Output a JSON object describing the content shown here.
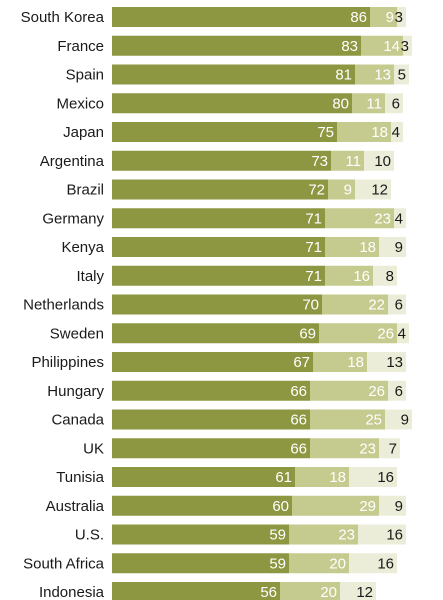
{
  "chart_data": {
    "type": "bar",
    "stacked": true,
    "orientation": "horizontal",
    "categories": [
      "South Korea",
      "France",
      "Spain",
      "Mexico",
      "Japan",
      "Argentina",
      "Brazil",
      "Germany",
      "Kenya",
      "Italy",
      "Netherlands",
      "Sweden",
      "Philippines",
      "Hungary",
      "Canada",
      "UK",
      "Tunisia",
      "Australia",
      "U.S.",
      "South Africa",
      "Indonesia"
    ],
    "series": [
      {
        "values": [
          86,
          83,
          81,
          80,
          75,
          73,
          72,
          71,
          71,
          71,
          70,
          69,
          67,
          66,
          66,
          66,
          61,
          60,
          59,
          59,
          56
        ],
        "color": "#8d9640",
        "label_color": "#ffffff"
      },
      {
        "values": [
          9,
          14,
          13,
          11,
          18,
          11,
          9,
          23,
          18,
          16,
          22,
          26,
          18,
          26,
          25,
          23,
          18,
          29,
          23,
          20,
          20
        ],
        "color": "#c5ca8e",
        "label_color": "#ffffff"
      },
      {
        "values": [
          3,
          3,
          5,
          6,
          4,
          10,
          12,
          4,
          9,
          8,
          6,
          4,
          13,
          6,
          9,
          7,
          16,
          9,
          16,
          16,
          12
        ],
        "color": "#ebedd9",
        "label_color": "#1a1a1a"
      }
    ],
    "xlim": [
      0,
      100
    ],
    "grid": false,
    "legend": false
  }
}
